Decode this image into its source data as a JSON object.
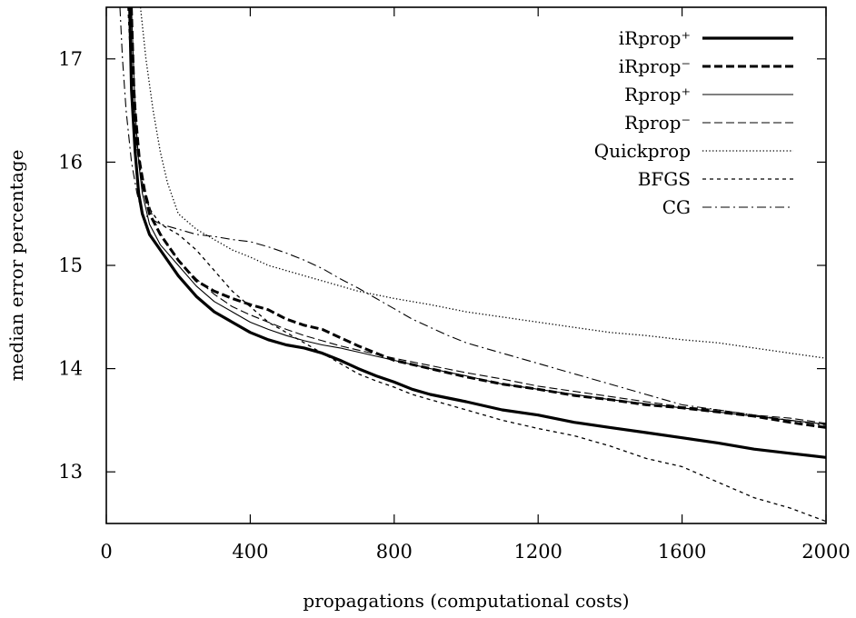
{
  "chart_data": {
    "type": "line",
    "title": "",
    "xlabel": "propagations (computational costs)",
    "ylabel": "median error percentage",
    "xlim": [
      0,
      2000
    ],
    "ylim": [
      12.5,
      17.5
    ],
    "xticks": [
      0,
      400,
      800,
      1200,
      1600,
      2000
    ],
    "yticks": [
      13,
      14,
      15,
      16,
      17
    ],
    "grid": false,
    "legend_position": "top-right",
    "series": [
      {
        "name": "iRprop⁺",
        "style": "thick-solid",
        "points": [
          [
            65,
            17.5
          ],
          [
            70,
            16.7
          ],
          [
            80,
            16.1
          ],
          [
            90,
            15.7
          ],
          [
            100,
            15.5
          ],
          [
            120,
            15.3
          ],
          [
            150,
            15.15
          ],
          [
            200,
            14.9
          ],
          [
            250,
            14.7
          ],
          [
            300,
            14.55
          ],
          [
            350,
            14.45
          ],
          [
            400,
            14.35
          ],
          [
            450,
            14.28
          ],
          [
            500,
            14.23
          ],
          [
            550,
            14.2
          ],
          [
            600,
            14.15
          ],
          [
            650,
            14.08
          ],
          [
            700,
            14.0
          ],
          [
            750,
            13.93
          ],
          [
            800,
            13.87
          ],
          [
            850,
            13.8
          ],
          [
            900,
            13.75
          ],
          [
            1000,
            13.68
          ],
          [
            1100,
            13.6
          ],
          [
            1200,
            13.55
          ],
          [
            1300,
            13.48
          ],
          [
            1400,
            13.43
          ],
          [
            1500,
            13.38
          ],
          [
            1600,
            13.33
          ],
          [
            1700,
            13.28
          ],
          [
            1800,
            13.22
          ],
          [
            1900,
            13.18
          ],
          [
            2000,
            13.14
          ]
        ]
      },
      {
        "name": "iRprop⁻",
        "style": "thick-dashed",
        "points": [
          [
            68,
            17.5
          ],
          [
            75,
            16.8
          ],
          [
            85,
            16.2
          ],
          [
            100,
            15.8
          ],
          [
            120,
            15.5
          ],
          [
            150,
            15.3
          ],
          [
            200,
            15.05
          ],
          [
            250,
            14.85
          ],
          [
            300,
            14.75
          ],
          [
            350,
            14.68
          ],
          [
            400,
            14.62
          ],
          [
            450,
            14.57
          ],
          [
            500,
            14.48
          ],
          [
            550,
            14.42
          ],
          [
            600,
            14.38
          ],
          [
            650,
            14.3
          ],
          [
            700,
            14.22
          ],
          [
            750,
            14.15
          ],
          [
            800,
            14.08
          ],
          [
            900,
            14.0
          ],
          [
            1000,
            13.92
          ],
          [
            1100,
            13.85
          ],
          [
            1200,
            13.8
          ],
          [
            1300,
            13.74
          ],
          [
            1400,
            13.7
          ],
          [
            1500,
            13.65
          ],
          [
            1600,
            13.62
          ],
          [
            1700,
            13.58
          ],
          [
            1800,
            13.54
          ],
          [
            1900,
            13.48
          ],
          [
            2000,
            13.43
          ]
        ]
      },
      {
        "name": "Rprop⁺",
        "style": "thin-solid",
        "points": [
          [
            70,
            17.5
          ],
          [
            80,
            16.5
          ],
          [
            90,
            16.0
          ],
          [
            100,
            15.7
          ],
          [
            120,
            15.4
          ],
          [
            150,
            15.2
          ],
          [
            200,
            15.0
          ],
          [
            250,
            14.8
          ],
          [
            300,
            14.65
          ],
          [
            350,
            14.55
          ],
          [
            400,
            14.45
          ],
          [
            450,
            14.38
          ],
          [
            500,
            14.32
          ],
          [
            550,
            14.27
          ],
          [
            600,
            14.23
          ],
          [
            650,
            14.2
          ],
          [
            700,
            14.16
          ],
          [
            750,
            14.12
          ],
          [
            800,
            14.08
          ],
          [
            900,
            14.0
          ],
          [
            1000,
            13.93
          ],
          [
            1100,
            13.85
          ],
          [
            1200,
            13.8
          ],
          [
            1300,
            13.75
          ],
          [
            1400,
            13.7
          ],
          [
            1500,
            13.66
          ],
          [
            1600,
            13.62
          ],
          [
            1700,
            13.58
          ],
          [
            1800,
            13.54
          ],
          [
            1900,
            13.5
          ],
          [
            2000,
            13.46
          ]
        ]
      },
      {
        "name": "Rprop⁻",
        "style": "thin-dashed",
        "points": [
          [
            72,
            17.5
          ],
          [
            80,
            16.6
          ],
          [
            95,
            16.0
          ],
          [
            110,
            15.7
          ],
          [
            130,
            15.45
          ],
          [
            160,
            15.25
          ],
          [
            200,
            15.05
          ],
          [
            250,
            14.87
          ],
          [
            300,
            14.72
          ],
          [
            350,
            14.6
          ],
          [
            400,
            14.52
          ],
          [
            450,
            14.45
          ],
          [
            500,
            14.38
          ],
          [
            550,
            14.32
          ],
          [
            600,
            14.27
          ],
          [
            650,
            14.22
          ],
          [
            700,
            14.18
          ],
          [
            750,
            14.14
          ],
          [
            800,
            14.1
          ],
          [
            900,
            14.03
          ],
          [
            1000,
            13.96
          ],
          [
            1100,
            13.9
          ],
          [
            1200,
            13.83
          ],
          [
            1300,
            13.78
          ],
          [
            1400,
            13.73
          ],
          [
            1500,
            13.68
          ],
          [
            1600,
            13.63
          ],
          [
            1700,
            13.6
          ],
          [
            1800,
            13.55
          ],
          [
            1900,
            13.52
          ],
          [
            2000,
            13.47
          ]
        ]
      },
      {
        "name": "Quickprop",
        "style": "dotted",
        "points": [
          [
            95,
            17.5
          ],
          [
            110,
            17.0
          ],
          [
            130,
            16.5
          ],
          [
            150,
            16.1
          ],
          [
            170,
            15.8
          ],
          [
            200,
            15.5
          ],
          [
            250,
            15.35
          ],
          [
            300,
            15.25
          ],
          [
            350,
            15.15
          ],
          [
            400,
            15.08
          ],
          [
            450,
            15.0
          ],
          [
            500,
            14.95
          ],
          [
            550,
            14.9
          ],
          [
            600,
            14.85
          ],
          [
            700,
            14.75
          ],
          [
            800,
            14.68
          ],
          [
            900,
            14.62
          ],
          [
            1000,
            14.55
          ],
          [
            1100,
            14.5
          ],
          [
            1200,
            14.45
          ],
          [
            1300,
            14.4
          ],
          [
            1400,
            14.35
          ],
          [
            1500,
            14.32
          ],
          [
            1600,
            14.28
          ],
          [
            1700,
            14.25
          ],
          [
            1800,
            14.2
          ],
          [
            1900,
            14.15
          ],
          [
            2000,
            14.1
          ]
        ]
      },
      {
        "name": "BFGS",
        "style": "short-dashed",
        "points": [
          [
            60,
            17.5
          ],
          [
            70,
            16.8
          ],
          [
            80,
            16.3
          ],
          [
            100,
            15.8
          ],
          [
            120,
            15.55
          ],
          [
            150,
            15.4
          ],
          [
            200,
            15.3
          ],
          [
            250,
            15.15
          ],
          [
            300,
            14.95
          ],
          [
            350,
            14.75
          ],
          [
            400,
            14.6
          ],
          [
            450,
            14.45
          ],
          [
            500,
            14.35
          ],
          [
            550,
            14.25
          ],
          [
            600,
            14.15
          ],
          [
            650,
            14.05
          ],
          [
            700,
            13.95
          ],
          [
            750,
            13.88
          ],
          [
            800,
            13.82
          ],
          [
            850,
            13.75
          ],
          [
            900,
            13.7
          ],
          [
            1000,
            13.6
          ],
          [
            1100,
            13.5
          ],
          [
            1200,
            13.42
          ],
          [
            1300,
            13.35
          ],
          [
            1400,
            13.25
          ],
          [
            1500,
            13.13
          ],
          [
            1600,
            13.05
          ],
          [
            1700,
            12.9
          ],
          [
            1800,
            12.75
          ],
          [
            1900,
            12.65
          ],
          [
            2000,
            12.52
          ]
        ]
      },
      {
        "name": "CG",
        "style": "dash-dot",
        "points": [
          [
            38,
            17.5
          ],
          [
            45,
            17.0
          ],
          [
            55,
            16.5
          ],
          [
            70,
            16.0
          ],
          [
            85,
            15.7
          ],
          [
            100,
            15.5
          ],
          [
            150,
            15.4
          ],
          [
            200,
            15.35
          ],
          [
            250,
            15.3
          ],
          [
            300,
            15.28
          ],
          [
            350,
            15.25
          ],
          [
            400,
            15.23
          ],
          [
            450,
            15.18
          ],
          [
            500,
            15.12
          ],
          [
            550,
            15.05
          ],
          [
            600,
            14.97
          ],
          [
            650,
            14.87
          ],
          [
            700,
            14.78
          ],
          [
            750,
            14.68
          ],
          [
            800,
            14.58
          ],
          [
            850,
            14.48
          ],
          [
            900,
            14.4
          ],
          [
            950,
            14.32
          ],
          [
            1000,
            14.25
          ],
          [
            1100,
            14.15
          ],
          [
            1200,
            14.05
          ],
          [
            1300,
            13.95
          ],
          [
            1400,
            13.85
          ],
          [
            1500,
            13.75
          ],
          [
            1600,
            13.65
          ],
          [
            1700,
            13.6
          ],
          [
            1800,
            13.55
          ],
          [
            1900,
            13.5
          ],
          [
            2000,
            13.45
          ]
        ]
      }
    ]
  }
}
